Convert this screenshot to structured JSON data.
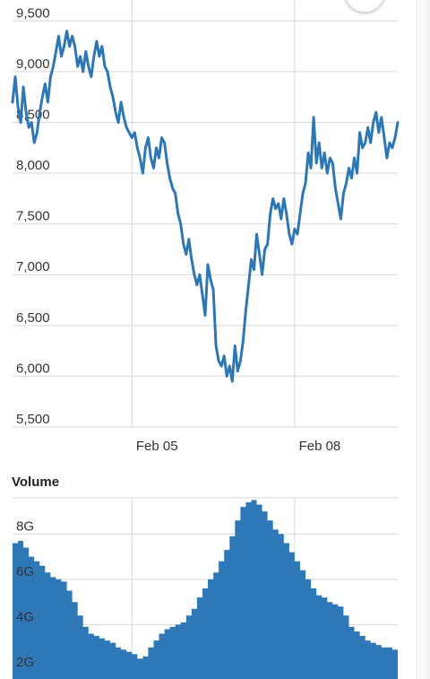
{
  "colors": {
    "line": "#2e77b5",
    "volume_fill": "#2f78b7",
    "grid": "#d9d9d9",
    "axis_text": "#333333"
  },
  "volume_section": {
    "title": "Volume"
  },
  "chart_data": [
    {
      "type": "line",
      "title": "",
      "xlabel": "",
      "ylabel": "",
      "ylim": [
        5500,
        9600
      ],
      "y_ticks": [
        "9,500",
        "9,000",
        "8,500",
        "8,000",
        "7,500",
        "7,000",
        "6,500",
        "6,000",
        "5,500"
      ],
      "y_tick_values": [
        9500,
        9000,
        8500,
        8000,
        7500,
        7000,
        6500,
        6000,
        5500
      ],
      "x_ticks": [
        "Feb 05",
        "Feb 08"
      ],
      "x_tick_positions": [
        2.2,
        5.2
      ],
      "xlim": [
        0,
        7.1
      ],
      "grid": true,
      "series": [
        {
          "values": [
            [
              0.0,
              8700
            ],
            [
              0.05,
              8950
            ],
            [
              0.1,
              8650
            ],
            [
              0.15,
              8500
            ],
            [
              0.2,
              8850
            ],
            [
              0.25,
              8600
            ],
            [
              0.3,
              8450
            ],
            [
              0.35,
              8500
            ],
            [
              0.4,
              8300
            ],
            [
              0.45,
              8400
            ],
            [
              0.5,
              8600
            ],
            [
              0.55,
              8750
            ],
            [
              0.6,
              8880
            ],
            [
              0.65,
              8700
            ],
            [
              0.7,
              8950
            ],
            [
              0.75,
              9050
            ],
            [
              0.8,
              9200
            ],
            [
              0.85,
              9350
            ],
            [
              0.9,
              9150
            ],
            [
              0.95,
              9250
            ],
            [
              1.0,
              9400
            ],
            [
              1.05,
              9250
            ],
            [
              1.1,
              9350
            ],
            [
              1.15,
              9250
            ],
            [
              1.2,
              9050
            ],
            [
              1.25,
              9150
            ],
            [
              1.3,
              9000
            ],
            [
              1.35,
              9200
            ],
            [
              1.4,
              9050
            ],
            [
              1.45,
              8950
            ],
            [
              1.5,
              9150
            ],
            [
              1.55,
              9300
            ],
            [
              1.6,
              9150
            ],
            [
              1.65,
              9250
            ],
            [
              1.7,
              9050
            ],
            [
              1.75,
              9000
            ],
            [
              1.8,
              8850
            ],
            [
              1.85,
              8750
            ],
            [
              1.9,
              8600
            ],
            [
              1.95,
              8500
            ],
            [
              2.0,
              8700
            ],
            [
              2.05,
              8550
            ],
            [
              2.1,
              8450
            ],
            [
              2.15,
              8400
            ],
            [
              2.2,
              8350
            ],
            [
              2.25,
              8400
            ],
            [
              2.3,
              8250
            ],
            [
              2.35,
              8150
            ],
            [
              2.4,
              8000
            ],
            [
              2.45,
              8250
            ],
            [
              2.5,
              8350
            ],
            [
              2.55,
              8150
            ],
            [
              2.6,
              8050
            ],
            [
              2.65,
              8250
            ],
            [
              2.7,
              8150
            ],
            [
              2.75,
              8350
            ],
            [
              2.8,
              8300
            ],
            [
              2.85,
              8100
            ],
            [
              2.9,
              7950
            ],
            [
              2.95,
              7850
            ],
            [
              3.0,
              7800
            ],
            [
              3.05,
              7600
            ],
            [
              3.1,
              7500
            ],
            [
              3.15,
              7300
            ],
            [
              3.2,
              7200
            ],
            [
              3.25,
              7350
            ],
            [
              3.3,
              7150
            ],
            [
              3.35,
              7000
            ],
            [
              3.4,
              6900
            ],
            [
              3.45,
              7000
            ],
            [
              3.5,
              6800
            ],
            [
              3.55,
              6600
            ],
            [
              3.6,
              7100
            ],
            [
              3.65,
              6950
            ],
            [
              3.7,
              6850
            ],
            [
              3.75,
              6300
            ],
            [
              3.8,
              6150
            ],
            [
              3.85,
              6100
            ],
            [
              3.9,
              6200
            ],
            [
              3.95,
              6000
            ],
            [
              4.0,
              6100
            ],
            [
              4.05,
              5950
            ],
            [
              4.1,
              6300
            ],
            [
              4.15,
              6050
            ],
            [
              4.2,
              6150
            ],
            [
              4.25,
              6350
            ],
            [
              4.3,
              6650
            ],
            [
              4.35,
              6900
            ],
            [
              4.4,
              7150
            ],
            [
              4.45,
              7050
            ],
            [
              4.5,
              7400
            ],
            [
              4.55,
              7200
            ],
            [
              4.6,
              7000
            ],
            [
              4.65,
              7250
            ],
            [
              4.7,
              7300
            ],
            [
              4.75,
              7600
            ],
            [
              4.8,
              7750
            ],
            [
              4.85,
              7650
            ],
            [
              4.9,
              7700
            ],
            [
              4.95,
              7550
            ],
            [
              5.0,
              7750
            ],
            [
              5.05,
              7600
            ],
            [
              5.1,
              7400
            ],
            [
              5.15,
              7300
            ],
            [
              5.2,
              7450
            ],
            [
              5.25,
              7400
            ],
            [
              5.3,
              7600
            ],
            [
              5.35,
              7800
            ],
            [
              5.4,
              7900
            ],
            [
              5.45,
              8200
            ],
            [
              5.5,
              8050
            ],
            [
              5.55,
              8550
            ],
            [
              5.6,
              8100
            ],
            [
              5.65,
              8300
            ],
            [
              5.7,
              8050
            ],
            [
              5.75,
              8200
            ],
            [
              5.8,
              8000
            ],
            [
              5.85,
              8150
            ],
            [
              5.9,
              8100
            ],
            [
              5.95,
              7850
            ],
            [
              6.0,
              7700
            ],
            [
              6.05,
              7550
            ],
            [
              6.1,
              7800
            ],
            [
              6.15,
              7900
            ],
            [
              6.2,
              8050
            ],
            [
              6.25,
              7950
            ],
            [
              6.3,
              8150
            ],
            [
              6.35,
              8000
            ],
            [
              6.4,
              8400
            ],
            [
              6.45,
              8250
            ],
            [
              6.5,
              8300
            ],
            [
              6.55,
              8450
            ],
            [
              6.6,
              8300
            ],
            [
              6.65,
              8500
            ],
            [
              6.7,
              8600
            ],
            [
              6.75,
              8400
            ],
            [
              6.8,
              8550
            ],
            [
              6.85,
              8350
            ],
            [
              6.9,
              8150
            ],
            [
              6.95,
              8300
            ],
            [
              7.0,
              8250
            ],
            [
              7.05,
              8350
            ],
            [
              7.1,
              8500
            ]
          ]
        }
      ]
    },
    {
      "type": "area",
      "title": "Volume",
      "xlabel": "",
      "ylabel": "",
      "ylim": [
        1.6,
        9.6
      ],
      "y_ticks": [
        "8G",
        "6G",
        "4G",
        "2G"
      ],
      "y_tick_values": [
        8,
        6,
        4,
        2
      ],
      "x_tick_positions": [
        2.2,
        5.2
      ],
      "xlim": [
        0,
        7.1
      ],
      "grid": true,
      "series": [
        {
          "values": [
            [
              0.0,
              7.6
            ],
            [
              0.1,
              7.7
            ],
            [
              0.2,
              7.4
            ],
            [
              0.3,
              7.0
            ],
            [
              0.4,
              6.8
            ],
            [
              0.5,
              6.6
            ],
            [
              0.6,
              6.3
            ],
            [
              0.7,
              6.1
            ],
            [
              0.8,
              6.0
            ],
            [
              0.9,
              5.9
            ],
            [
              1.0,
              5.5
            ],
            [
              1.1,
              5.0
            ],
            [
              1.2,
              4.4
            ],
            [
              1.3,
              3.9
            ],
            [
              1.4,
              3.6
            ],
            [
              1.5,
              3.5
            ],
            [
              1.6,
              3.4
            ],
            [
              1.7,
              3.3
            ],
            [
              1.8,
              3.2
            ],
            [
              1.9,
              3.0
            ],
            [
              2.0,
              2.9
            ],
            [
              2.1,
              2.8
            ],
            [
              2.2,
              2.7
            ],
            [
              2.3,
              2.5
            ],
            [
              2.4,
              2.6
            ],
            [
              2.5,
              3.0
            ],
            [
              2.6,
              3.3
            ],
            [
              2.7,
              3.6
            ],
            [
              2.8,
              3.8
            ],
            [
              2.9,
              3.9
            ],
            [
              3.0,
              4.0
            ],
            [
              3.1,
              4.1
            ],
            [
              3.2,
              4.4
            ],
            [
              3.3,
              4.7
            ],
            [
              3.4,
              5.2
            ],
            [
              3.5,
              5.6
            ],
            [
              3.6,
              6.0
            ],
            [
              3.7,
              6.3
            ],
            [
              3.8,
              6.8
            ],
            [
              3.9,
              7.3
            ],
            [
              4.0,
              7.9
            ],
            [
              4.1,
              8.6
            ],
            [
              4.2,
              9.2
            ],
            [
              4.3,
              9.4
            ],
            [
              4.4,
              9.5
            ],
            [
              4.5,
              9.3
            ],
            [
              4.6,
              9.0
            ],
            [
              4.7,
              8.6
            ],
            [
              4.8,
              8.2
            ],
            [
              4.9,
              8.0
            ],
            [
              5.0,
              7.6
            ],
            [
              5.1,
              7.2
            ],
            [
              5.2,
              6.8
            ],
            [
              5.3,
              6.4
            ],
            [
              5.4,
              6.0
            ],
            [
              5.5,
              5.6
            ],
            [
              5.6,
              5.3
            ],
            [
              5.7,
              5.2
            ],
            [
              5.8,
              5.0
            ],
            [
              5.9,
              4.9
            ],
            [
              6.0,
              4.8
            ],
            [
              6.1,
              4.4
            ],
            [
              6.2,
              3.9
            ],
            [
              6.3,
              3.7
            ],
            [
              6.4,
              3.5
            ],
            [
              6.5,
              3.3
            ],
            [
              6.6,
              3.2
            ],
            [
              6.7,
              3.1
            ],
            [
              6.8,
              3.0
            ],
            [
              6.9,
              3.0
            ],
            [
              7.0,
              2.9
            ],
            [
              7.1,
              2.8
            ]
          ]
        }
      ]
    }
  ]
}
